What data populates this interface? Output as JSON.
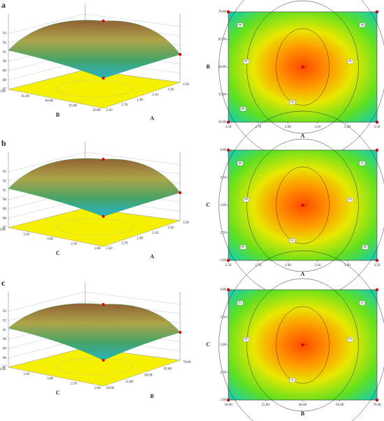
{
  "panels": [
    {
      "label": "a",
      "surface": {
        "zticks": [
          "87",
          "88",
          "89",
          "90",
          "91",
          "92",
          "93"
        ],
        "x_label": "A",
        "xticks": [
          "2.50",
          "2.70",
          "2.90",
          "3.10",
          "3.30",
          "3.50"
        ],
        "y_label": "B",
        "yticks": [
          "50.00",
          "55.00",
          "60.00",
          "65.00",
          "70.00"
        ]
      },
      "contour": {
        "x_label": "A",
        "xticks": [
          "2.50",
          "2.70",
          "2.90",
          "3.10",
          "3.30",
          "3.50"
        ],
        "y_label": "B",
        "yticks": [
          "50.00",
          "55.00",
          "60.00",
          "65.00",
          "70.00"
        ],
        "levels": [
          "90",
          "91",
          "92",
          "91",
          "90",
          "90"
        ],
        "center": "5"
      }
    },
    {
      "label": "b",
      "surface": {
        "zticks": [
          "87",
          "88",
          "89",
          "90",
          "91",
          "92",
          "93"
        ],
        "x_label": "A",
        "xticks": [
          "2.50",
          "2.70",
          "2.90",
          "3.10",
          "3.30",
          "3.50"
        ],
        "y_label": "C",
        "yticks": [
          "2.00",
          "2.50",
          "3.00",
          "3.50",
          "4.00"
        ]
      },
      "contour": {
        "x_label": "A",
        "xticks": [
          "2.50",
          "2.70",
          "2.90",
          "3.10",
          "3.30",
          "3.50"
        ],
        "y_label": "C",
        "yticks": [
          "2.00",
          "2.50",
          "3.00",
          "3.50",
          "4.00"
        ],
        "levels": [
          "89",
          "90",
          "91",
          "92",
          "91",
          "90",
          "89"
        ],
        "center": "5"
      }
    },
    {
      "label": "c",
      "surface": {
        "zticks": [
          "87",
          "88",
          "89",
          "90",
          "91",
          "92",
          "93"
        ],
        "x_label": "B",
        "xticks": [
          "50.00",
          "55.00",
          "60.00",
          "65.00",
          "70.00"
        ],
        "y_label": "C",
        "yticks": [
          "2.00",
          "2.50",
          "3.00",
          "3.50",
          "4.00"
        ]
      },
      "contour": {
        "x_label": "B",
        "xticks": [
          "50.00",
          "55.00",
          "60.00",
          "65.00",
          "70.00"
        ],
        "y_label": "C",
        "yticks": [
          "2.00",
          "2.50",
          "3.00",
          "3.50",
          "4.00"
        ],
        "levels": [
          "91",
          "92",
          "91",
          "92",
          "91"
        ],
        "center": "5"
      }
    }
  ]
}
